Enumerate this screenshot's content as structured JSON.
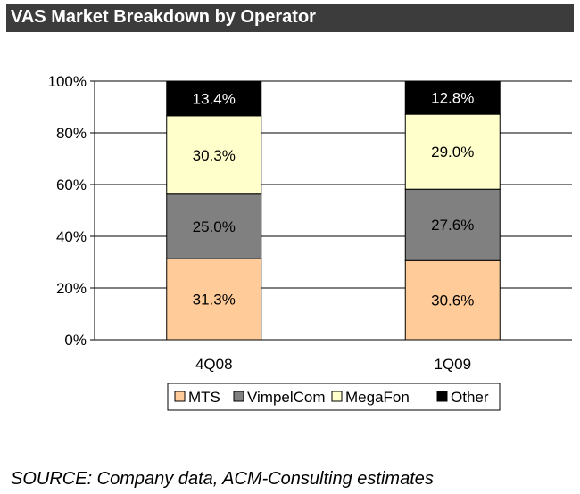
{
  "title": "VAS Market Breakdown by Operator",
  "source": "SOURCE: Company data, ACM-Consulting estimates",
  "chart_data": {
    "type": "bar",
    "stacked": true,
    "categories": [
      "4Q08",
      "1Q09"
    ],
    "series": [
      {
        "name": "MTS",
        "values": [
          31.3,
          30.6
        ],
        "labels": [
          "31.3%",
          "30.6%"
        ],
        "color": "#ffcc99"
      },
      {
        "name": "VimpelCom",
        "values": [
          25.0,
          27.6
        ],
        "labels": [
          "25.0%",
          "27.6%"
        ],
        "color": "#808080"
      },
      {
        "name": "MegaFon",
        "values": [
          30.3,
          29.0
        ],
        "labels": [
          "30.3%",
          "29.0%"
        ],
        "color": "#ffffcc"
      },
      {
        "name": "Other",
        "values": [
          13.4,
          12.8
        ],
        "labels": [
          "13.4%",
          "12.8%"
        ],
        "color": "#000000"
      }
    ],
    "ylim": [
      0,
      100
    ],
    "yticks": [
      0,
      20,
      40,
      60,
      80,
      100
    ],
    "ytick_labels": [
      "0%",
      "20%",
      "40%",
      "60%",
      "80%",
      "100%"
    ],
    "grid": true,
    "legend": "bottom"
  }
}
